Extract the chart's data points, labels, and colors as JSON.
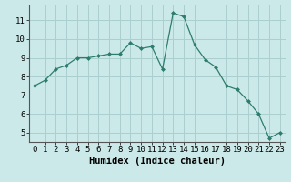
{
  "x": [
    0,
    1,
    2,
    3,
    4,
    5,
    6,
    7,
    8,
    9,
    10,
    11,
    12,
    13,
    14,
    15,
    16,
    17,
    18,
    19,
    20,
    21,
    22,
    23
  ],
  "y": [
    7.5,
    7.8,
    8.4,
    8.6,
    9.0,
    9.0,
    9.1,
    9.2,
    9.2,
    9.8,
    9.5,
    9.6,
    8.4,
    11.4,
    11.2,
    9.7,
    8.9,
    8.5,
    7.5,
    7.3,
    6.7,
    6.0,
    4.7,
    5.0
  ],
  "line_color": "#2d7d6e",
  "marker": "D",
  "marker_size": 2,
  "bg_color": "#cce9e9",
  "grid_color": "#aacfcf",
  "xlabel": "Humidex (Indice chaleur)",
  "xlim": [
    -0.5,
    23.5
  ],
  "ylim": [
    4.5,
    11.8
  ],
  "yticks": [
    5,
    6,
    7,
    8,
    9,
    10,
    11
  ],
  "xticks": [
    0,
    1,
    2,
    3,
    4,
    5,
    6,
    7,
    8,
    9,
    10,
    11,
    12,
    13,
    14,
    15,
    16,
    17,
    18,
    19,
    20,
    21,
    22,
    23
  ],
  "tick_font_size": 6.5,
  "label_font_size": 7.5
}
